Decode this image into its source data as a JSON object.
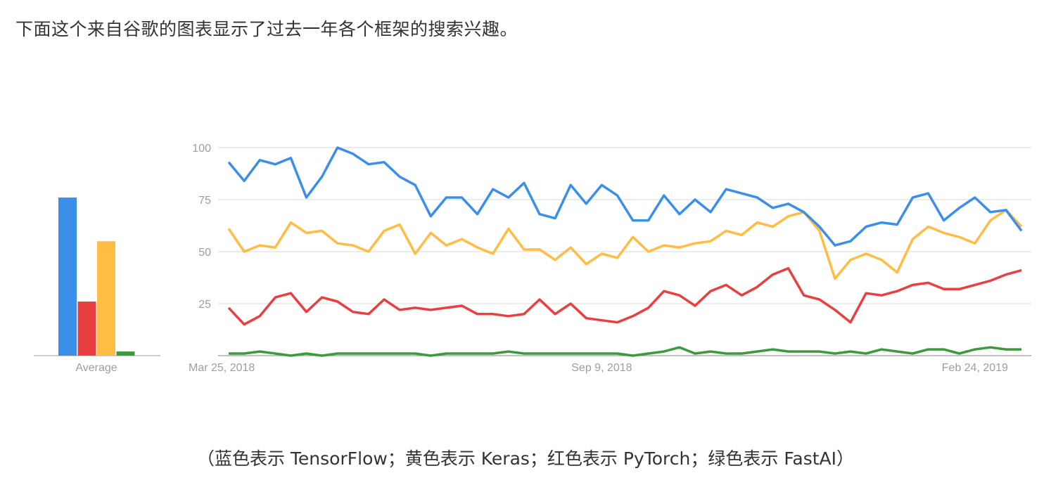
{
  "intro_text": "下面这个来自谷歌的图表显示了过去一年各个框架的搜索兴趣。",
  "caption": "（蓝色表示 TensorFlow；黄色表示 Keras；红色表示 PyTorch；绿色表示 FastAI）",
  "chart_data": [
    {
      "type": "bar",
      "categories": [
        "Average"
      ],
      "series": [
        {
          "color": "#3b8fe8",
          "values": [
            76
          ]
        },
        {
          "color": "#e84040",
          "values": [
            26
          ]
        },
        {
          "color": "#ffbd45",
          "values": [
            55
          ]
        },
        {
          "color": "#3c9a3c",
          "values": [
            2
          ]
        }
      ],
      "ylim": [
        0,
        100
      ],
      "xlabel": "",
      "ylabel": ""
    },
    {
      "type": "line",
      "x_start": "Mar 25, 2018",
      "x_interval": "weekly",
      "x_tick_labels": [
        "Mar 25, 2018",
        "Sep 9, 2018",
        "Feb 24, 2019"
      ],
      "y_ticks": [
        "100",
        "75",
        "50",
        "25"
      ],
      "ylim": [
        0,
        100
      ],
      "grid": true,
      "series": [
        {
          "color": "#3b8fe8",
          "values": [
            93,
            84,
            94,
            92,
            95,
            76,
            86,
            100,
            97,
            92,
            93,
            86,
            82,
            67,
            76,
            76,
            68,
            80,
            76,
            83,
            68,
            66,
            82,
            73,
            82,
            77,
            65,
            65,
            77,
            68,
            75,
            69,
            80,
            78,
            76,
            71,
            73,
            69,
            62,
            53,
            55,
            62,
            64,
            63,
            76,
            78,
            65,
            71,
            76,
            69,
            70,
            60
          ]
        },
        {
          "color": "#ffbd45",
          "values": [
            61,
            50,
            53,
            52,
            64,
            59,
            60,
            54,
            53,
            50,
            60,
            63,
            49,
            59,
            53,
            56,
            52,
            49,
            61,
            51,
            51,
            46,
            52,
            44,
            49,
            47,
            57,
            50,
            53,
            52,
            54,
            55,
            60,
            58,
            64,
            62,
            67,
            69,
            60,
            37,
            46,
            49,
            46,
            40,
            56,
            62,
            59,
            57,
            54,
            65,
            70,
            62
          ]
        },
        {
          "color": "#e84040",
          "values": [
            23,
            15,
            19,
            28,
            30,
            21,
            28,
            26,
            21,
            20,
            27,
            22,
            23,
            22,
            23,
            24,
            20,
            20,
            19,
            20,
            27,
            20,
            25,
            18,
            17,
            16,
            19,
            23,
            31,
            29,
            24,
            31,
            34,
            29,
            33,
            39,
            42,
            29,
            27,
            22,
            16,
            30,
            29,
            31,
            34,
            35,
            32,
            32,
            34,
            36,
            39,
            41
          ]
        },
        {
          "color": "#3c9a3c",
          "values": [
            1,
            1,
            2,
            1,
            0,
            1,
            0,
            1,
            1,
            1,
            1,
            1,
            1,
            0,
            1,
            1,
            1,
            1,
            2,
            1,
            1,
            1,
            1,
            1,
            1,
            1,
            0,
            1,
            2,
            4,
            1,
            2,
            1,
            1,
            2,
            3,
            2,
            2,
            2,
            1,
            2,
            1,
            3,
            2,
            1,
            3,
            3,
            1,
            3,
            4,
            3,
            3
          ]
        }
      ]
    }
  ]
}
